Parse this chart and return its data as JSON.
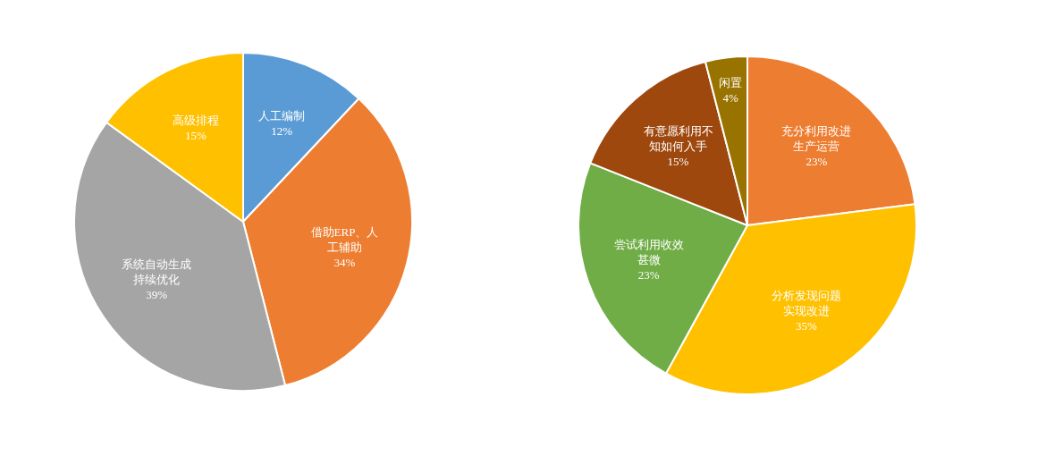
{
  "chart_data": [
    {
      "type": "pie",
      "categories": [
        "人工编制",
        "借助ERP、人工辅助",
        "系统自动生成持续优化",
        "高级排程"
      ],
      "values": [
        12,
        34,
        39,
        15
      ],
      "value_labels": [
        "12%",
        "34%",
        "39%",
        "15%"
      ],
      "colors": [
        "#5b9bd5",
        "#ed7d31",
        "#a5a5a5",
        "#ffc000"
      ],
      "legend": false
    },
    {
      "type": "pie",
      "categories": [
        "充分利用改进生产运营",
        "分析发现问题实现改进",
        "尝试利用收效甚微",
        "有意愿利用不知如何入手",
        "闲置"
      ],
      "values": [
        23,
        35,
        23,
        15,
        4
      ],
      "value_labels": [
        "23%",
        "35%",
        "23%",
        "15%",
        "4%"
      ],
      "colors": [
        "#ed7d31",
        "#ffc000",
        "#70ad47",
        "#9e480e",
        "#997300"
      ],
      "legend": false
    }
  ]
}
